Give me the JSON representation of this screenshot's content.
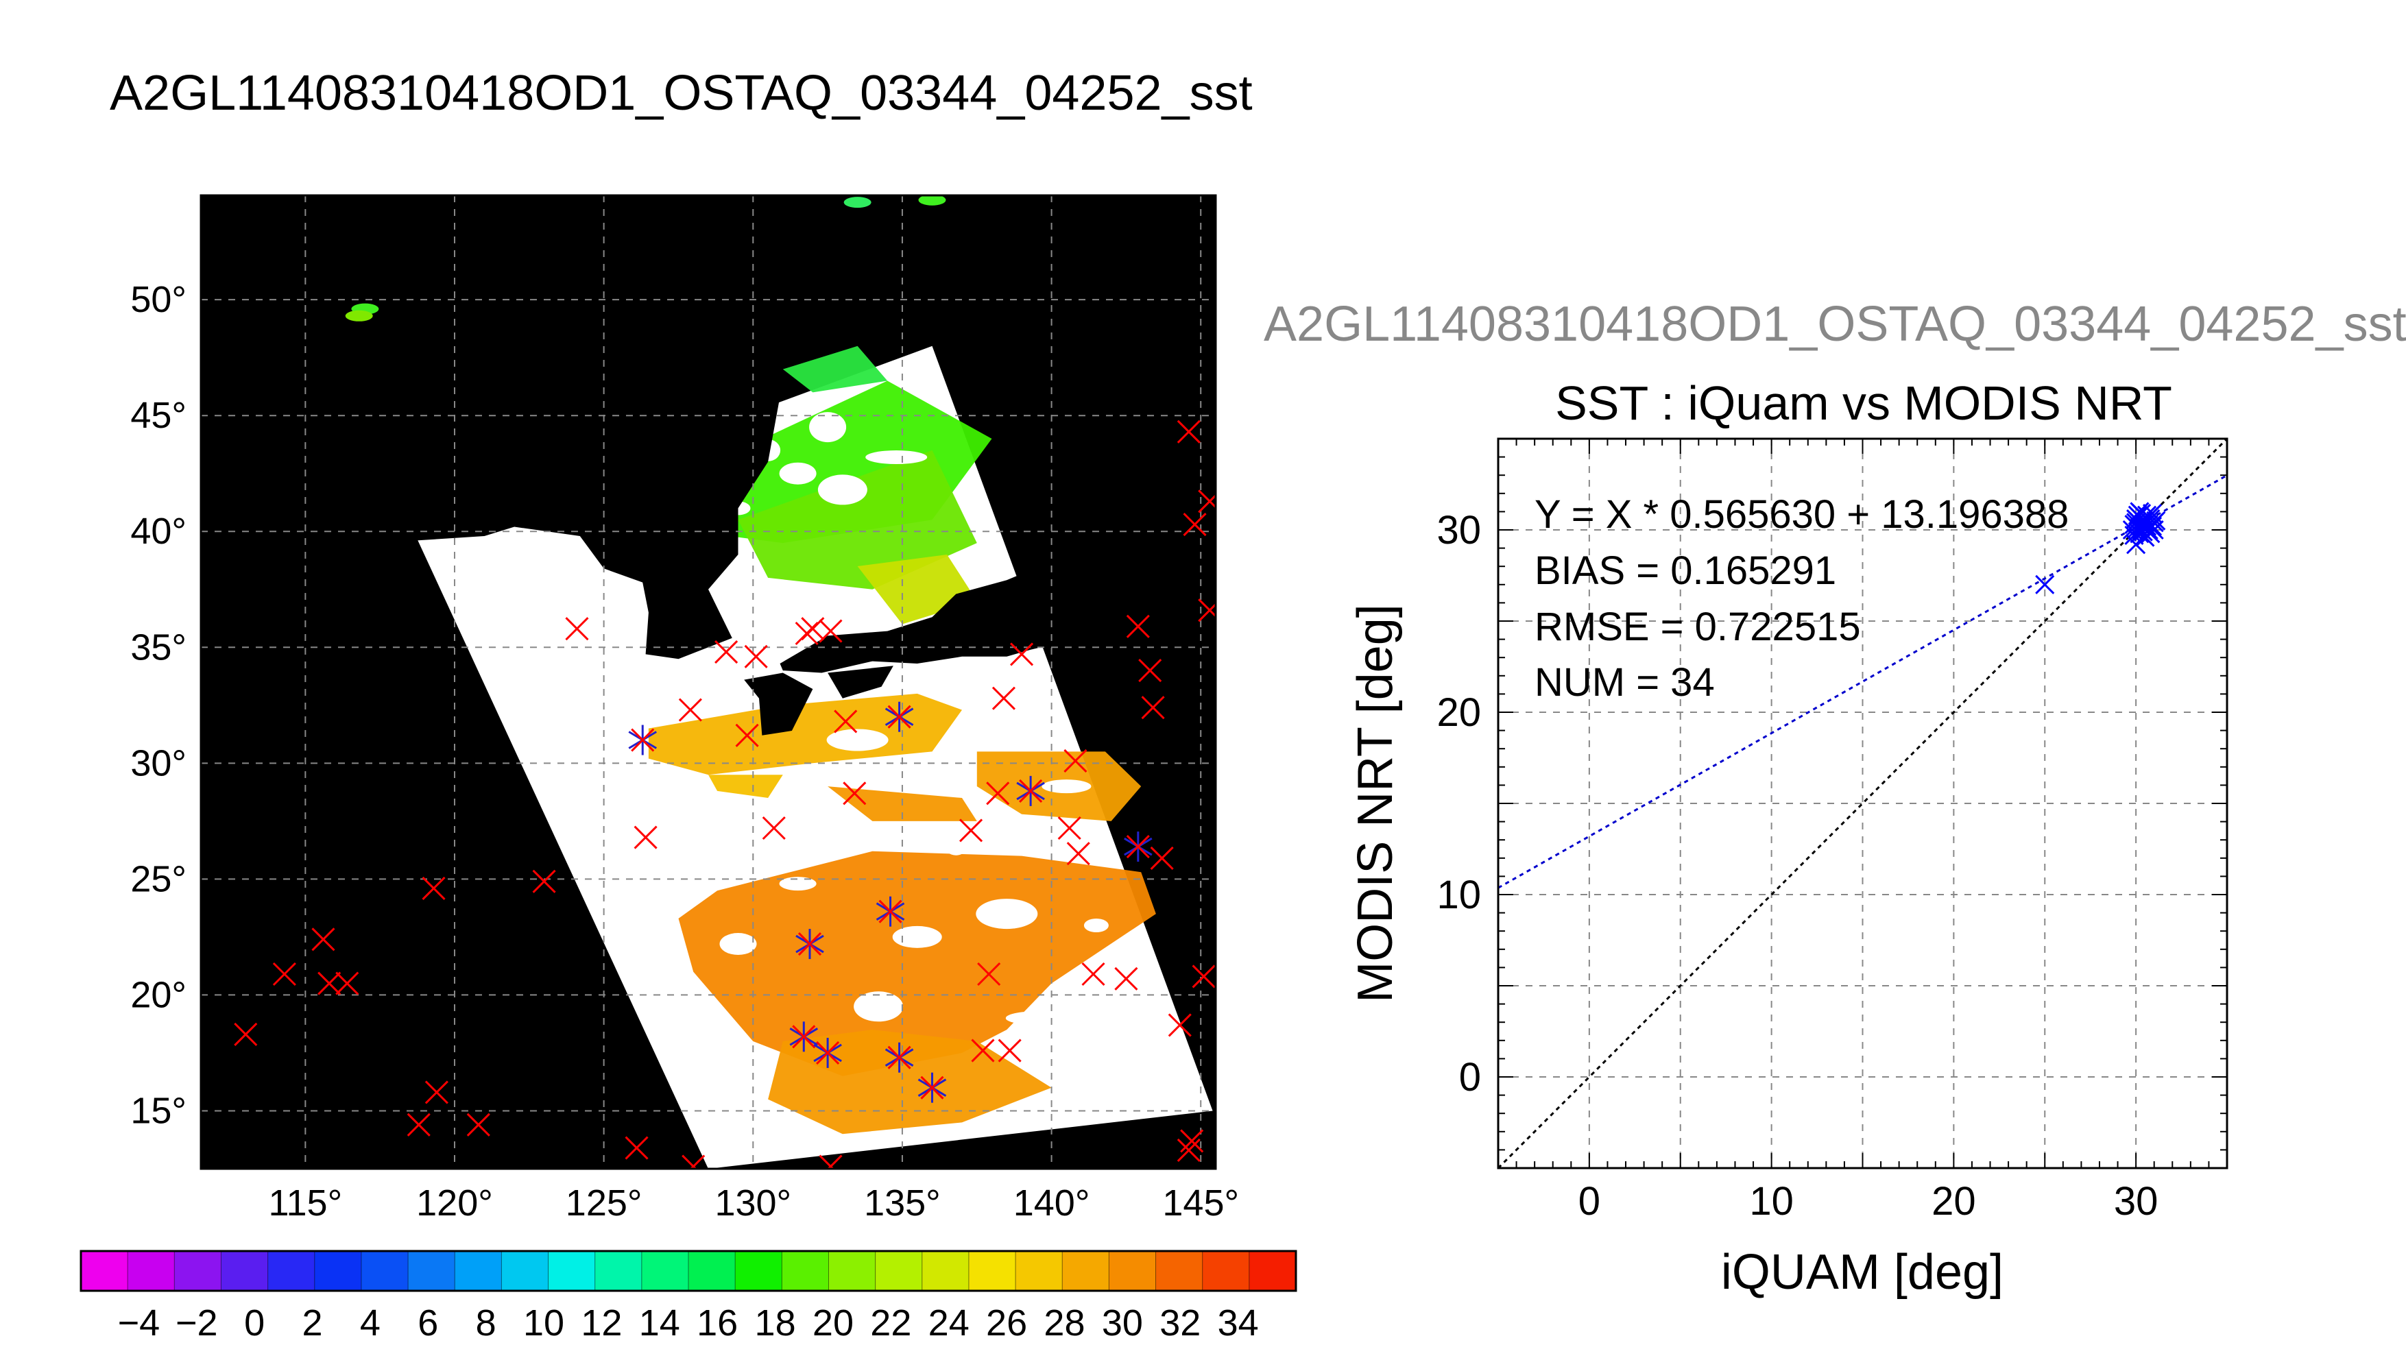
{
  "main_title": "A2GL11408310418OD1_OSTAQ_03344_04252_sst",
  "map_panel": {
    "lon_ticks": [
      115,
      120,
      125,
      130,
      135,
      140,
      145
    ],
    "lat_ticks": [
      15,
      20,
      25,
      30,
      35,
      40,
      45,
      50
    ],
    "lon_range": [
      111.5,
      145.5
    ],
    "lat_range": [
      12.5,
      54.5
    ],
    "degree_symbol": "°",
    "colors": {
      "land": "#000000",
      "cloud": "#ffffff",
      "marker_red": "#ff0000",
      "marker_blue": "#2222cc",
      "grid": "#888888"
    },
    "swath_corners": [
      [
        118.7,
        39.8
      ],
      [
        136.0,
        48.0
      ],
      [
        145.4,
        15.0
      ],
      [
        128.5,
        12.5
      ]
    ],
    "iquam_points_outside": [
      [
        113.0,
        18.3
      ],
      [
        114.3,
        20.9
      ],
      [
        115.6,
        22.4
      ],
      [
        115.8,
        20.5
      ],
      [
        116.4,
        20.5
      ],
      [
        119.3,
        24.6
      ],
      [
        119.4,
        15.8
      ],
      [
        118.8,
        14.4
      ],
      [
        120.8,
        14.4
      ],
      [
        123.0,
        24.9
      ],
      [
        124.1,
        35.8
      ],
      [
        126.1,
        13.4
      ],
      [
        128.0,
        12.6
      ],
      [
        132.6,
        12.6
      ],
      [
        144.6,
        44.3
      ],
      [
        144.8,
        40.3
      ],
      [
        145.3,
        41.3
      ],
      [
        145.3,
        36.6
      ],
      [
        145.1,
        20.8
      ],
      [
        144.7,
        13.7
      ],
      [
        144.6,
        13.3
      ],
      [
        144.3,
        18.7
      ],
      [
        143.3,
        34.0
      ],
      [
        143.4,
        32.4
      ],
      [
        142.9,
        35.9
      ],
      [
        143.7,
        25.9
      ],
      [
        142.5,
        20.7
      ],
      [
        141.4,
        20.9
      ]
    ],
    "iquam_points_inside": [
      [
        126.4,
        26.8
      ],
      [
        127.9,
        32.3
      ],
      [
        129.1,
        34.8
      ],
      [
        129.8,
        31.2
      ],
      [
        130.1,
        34.6
      ],
      [
        130.7,
        27.2
      ],
      [
        131.8,
        35.6
      ],
      [
        132.0,
        35.8
      ],
      [
        132.6,
        35.7
      ],
      [
        133.1,
        31.8
      ],
      [
        133.4,
        28.7
      ],
      [
        137.3,
        27.1
      ],
      [
        137.7,
        17.6
      ],
      [
        137.9,
        20.9
      ],
      [
        138.2,
        28.7
      ],
      [
        138.4,
        32.8
      ],
      [
        138.6,
        17.6
      ],
      [
        139.0,
        34.7
      ],
      [
        140.6,
        27.2
      ],
      [
        140.8,
        30.1
      ],
      [
        140.9,
        26.1
      ]
    ],
    "matched_points": [
      [
        126.3,
        31.0
      ],
      [
        131.9,
        22.2
      ],
      [
        131.7,
        18.2
      ],
      [
        132.5,
        17.5
      ],
      [
        134.6,
        23.6
      ],
      [
        134.9,
        32.0
      ],
      [
        134.9,
        17.3
      ],
      [
        136.0,
        16.0
      ],
      [
        139.3,
        28.8
      ],
      [
        142.9,
        26.4
      ]
    ]
  },
  "colorbar": {
    "labels": [
      "−4",
      "−2",
      "0",
      "2",
      "4",
      "6",
      "8",
      "10",
      "12",
      "14",
      "16",
      "18",
      "20",
      "22",
      "24",
      "26",
      "28",
      "30",
      "32",
      "34"
    ],
    "segment_colors": [
      "#ee00ee",
      "#c800f0",
      "#8c14f0",
      "#5a1ef0",
      "#2828f5",
      "#0a32f5",
      "#0a50f5",
      "#0a78f5",
      "#00a0f8",
      "#00c8f0",
      "#00f0e6",
      "#00f5aa",
      "#00f578",
      "#00f050",
      "#10f000",
      "#5af000",
      "#8cf000",
      "#b4f000",
      "#d2e800",
      "#f5e100",
      "#f5c800",
      "#f5a800",
      "#f58c00",
      "#f56400",
      "#f54100",
      "#f51e00"
    ]
  },
  "scatter_subtitle": "A2GL11408310418OD1_OSTAQ_03344_04252_sst",
  "chart_data": {
    "type": "scatter",
    "title": "SST : iQuam vs MODIS NRT",
    "xlabel": "iQUAM [deg]",
    "ylabel": "MODIS NRT [deg]",
    "xlim": [
      -5,
      35
    ],
    "ylim": [
      -5,
      35
    ],
    "xticks": [
      0,
      10,
      20,
      30
    ],
    "yticks": [
      0,
      10,
      20,
      30
    ],
    "grid": true,
    "annotations": [
      "Y = X * 0.565630 + 13.196388",
      "BIAS = 0.165291",
      "RMSE = 0.722515",
      "NUM = 34"
    ],
    "regression": {
      "slope": 0.56563,
      "intercept": 13.196388,
      "color": "#0000cc"
    },
    "identity_line_color": "#000000",
    "marker_color": "#0000ff",
    "points": [
      [
        25.0,
        27.0
      ],
      [
        29.8,
        30.0
      ],
      [
        29.9,
        30.3
      ],
      [
        30.0,
        29.2
      ],
      [
        30.0,
        30.6
      ],
      [
        30.1,
        30.1
      ],
      [
        30.1,
        30.8
      ],
      [
        30.2,
        29.8
      ],
      [
        30.2,
        30.4
      ],
      [
        30.3,
        30.9
      ],
      [
        30.3,
        30.2
      ],
      [
        30.4,
        30.5
      ],
      [
        30.4,
        29.9
      ],
      [
        30.5,
        30.7
      ],
      [
        30.5,
        30.1
      ],
      [
        30.6,
        30.4
      ],
      [
        30.6,
        30.8
      ],
      [
        30.7,
        30.0
      ],
      [
        30.7,
        30.3
      ],
      [
        30.8,
        30.6
      ],
      [
        30.8,
        29.8
      ],
      [
        30.9,
        30.2
      ],
      [
        30.9,
        30.9
      ],
      [
        31.0,
        30.4
      ],
      [
        31.0,
        30.0
      ],
      [
        30.2,
        31.0
      ],
      [
        30.0,
        30.4
      ],
      [
        30.4,
        30.3
      ],
      [
        30.6,
        30.2
      ],
      [
        31.1,
        30.5
      ],
      [
        29.9,
        29.7
      ],
      [
        30.3,
        30.0
      ],
      [
        30.7,
        30.7
      ],
      [
        30.5,
        29.6
      ]
    ]
  }
}
